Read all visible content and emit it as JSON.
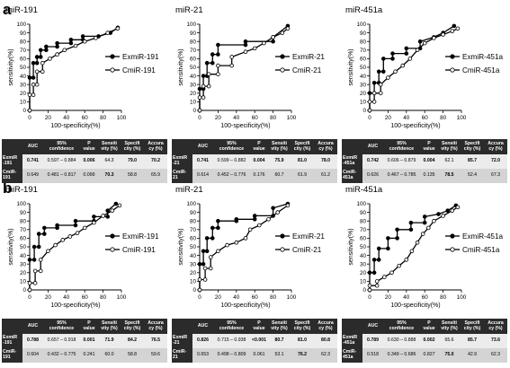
{
  "panel_labels": [
    "a",
    "b"
  ],
  "chart_data": [
    {
      "type": "line",
      "panel": "a",
      "title": "miR-191",
      "xlabel": "100-specificity(%)",
      "ylabel": "sensitivity(%)",
      "xlim": [
        0,
        100
      ],
      "ylim": [
        0,
        100
      ],
      "xticks": [
        0,
        20,
        40,
        60,
        80,
        100
      ],
      "yticks": [
        0,
        10,
        20,
        30,
        40,
        50,
        60,
        70,
        80,
        90,
        100
      ],
      "series": [
        {
          "name": "ExmiR-191",
          "marker": "filled",
          "x": [
            0,
            0,
            4,
            4,
            8,
            8,
            12,
            12,
            18,
            18,
            30,
            30,
            45,
            45,
            58,
            58,
            75,
            88,
            96
          ],
          "y": [
            0,
            38,
            38,
            55,
            55,
            62,
            62,
            70,
            70,
            74,
            74,
            78,
            78,
            82,
            82,
            86,
            86,
            90,
            96
          ]
        },
        {
          "name": "CmiR-191",
          "marker": "open",
          "x": [
            0,
            0,
            4,
            4,
            8,
            8,
            14,
            14,
            22,
            30,
            38,
            50,
            60,
            72,
            85,
            96
          ],
          "y": [
            0,
            18,
            18,
            30,
            30,
            45,
            45,
            55,
            60,
            65,
            70,
            75,
            80,
            84,
            90,
            95
          ]
        }
      ],
      "table": {
        "headers": [
          "",
          "AUC",
          "95% confidence",
          "P value",
          "Sensiti vity (%)",
          "Specifi city (%)",
          "Accura cy (%)"
        ],
        "rows": [
          [
            "ExmiR -191",
            "0.741",
            "0.597 – 0.884",
            "0.006",
            "64.3",
            "79.0",
            "70.2"
          ],
          [
            "CmiR- 191",
            "0.649",
            "0.481 – 0.817",
            "0.099",
            "70.3",
            "58.8",
            "65.9"
          ]
        ],
        "bold": [
          [
            1,
            3,
            5,
            6
          ],
          [
            4
          ]
        ]
      }
    },
    {
      "type": "line",
      "panel": "a",
      "title": "miR-21",
      "xlabel": "100-specificity(%)",
      "ylabel": "sensitivity(%)",
      "xlim": [
        0,
        100
      ],
      "ylim": [
        0,
        100
      ],
      "xticks": [
        0,
        20,
        40,
        60,
        80,
        100
      ],
      "yticks": [
        0,
        10,
        20,
        30,
        40,
        50,
        60,
        70,
        80,
        90,
        100
      ],
      "series": [
        {
          "name": "ExmiR-21",
          "marker": "filled",
          "x": [
            0,
            0,
            4,
            4,
            8,
            8,
            14,
            14,
            20,
            20,
            50,
            50,
            80,
            80,
            96
          ],
          "y": [
            0,
            25,
            25,
            40,
            40,
            55,
            55,
            65,
            65,
            76,
            76,
            80,
            80,
            85,
            98
          ]
        },
        {
          "name": "CmiR-21",
          "marker": "open",
          "x": [
            0,
            0,
            4,
            4,
            10,
            10,
            20,
            20,
            35,
            35,
            50,
            60,
            70,
            80,
            90,
            96
          ],
          "y": [
            0,
            15,
            15,
            28,
            28,
            42,
            42,
            52,
            52,
            62,
            68,
            72,
            78,
            85,
            90,
            95
          ]
        }
      ],
      "table": {
        "headers": [
          "",
          "AUC",
          "95% confidence",
          "P value",
          "Sensiti vity (%)",
          "Specifi city (%)",
          "Accura cy (%)"
        ],
        "rows": [
          [
            "ExmiR -21",
            "0.741",
            "0.599 – 0.882",
            "0.004",
            "75.9",
            "81.0",
            "78.0"
          ],
          [
            "CmiR- 21",
            "0.614",
            "0.452 – 0.776",
            "0.176",
            "60.7",
            "61.9",
            "61.2"
          ]
        ],
        "bold": [
          [
            1,
            3,
            4,
            5,
            6
          ],
          []
        ]
      }
    },
    {
      "type": "line",
      "panel": "a",
      "title": "miR-451a",
      "xlabel": "100-specificity(%)",
      "ylabel": "sensitivity(%)",
      "xlim": [
        0,
        100
      ],
      "ylim": [
        0,
        100
      ],
      "xticks": [
        0,
        20,
        40,
        60,
        80,
        100
      ],
      "yticks": [
        0,
        10,
        20,
        30,
        40,
        50,
        60,
        70,
        80,
        90,
        100
      ],
      "series": [
        {
          "name": "ExmiR-451a",
          "marker": "filled",
          "x": [
            0,
            0,
            5,
            5,
            10,
            10,
            15,
            15,
            25,
            25,
            40,
            40,
            55,
            55,
            70,
            80,
            92
          ],
          "y": [
            0,
            20,
            20,
            32,
            32,
            45,
            45,
            60,
            60,
            66,
            66,
            72,
            72,
            80,
            85,
            90,
            98
          ]
        },
        {
          "name": "CmiR-451a",
          "marker": "open",
          "x": [
            0,
            0,
            5,
            5,
            12,
            12,
            20,
            28,
            36,
            44,
            52,
            60,
            70,
            80,
            90,
            96
          ],
          "y": [
            0,
            10,
            10,
            20,
            20,
            30,
            38,
            45,
            52,
            60,
            70,
            78,
            84,
            88,
            92,
            95
          ]
        }
      ],
      "table": {
        "headers": [
          "",
          "AUC",
          "95% confidence",
          "P value",
          "Sensiti vity (%)",
          "Specifi city (%)",
          "Accura cy (%)"
        ],
        "rows": [
          [
            "ExmiR -451a",
            "0.742",
            "0.606 – 0.879",
            "0.004",
            "62.1",
            "85.7",
            "72.0"
          ],
          [
            "CmiR- 451a",
            "0.626",
            "0.467 – 0.785",
            "0.135",
            "78.5",
            "52.4",
            "67.3"
          ]
        ],
        "bold": [
          [
            1,
            3,
            5,
            6
          ],
          [
            4
          ]
        ]
      }
    },
    {
      "type": "line",
      "panel": "b",
      "title": "miR-191",
      "xlabel": "100-specificity(%)",
      "ylabel": "sensitivity(%)",
      "xlim": [
        0,
        100
      ],
      "ylim": [
        0,
        100
      ],
      "xticks": [
        0,
        20,
        40,
        60,
        80,
        100
      ],
      "yticks": [
        0,
        10,
        20,
        30,
        40,
        50,
        60,
        70,
        80,
        90,
        100
      ],
      "series": [
        {
          "name": "ExmiR-191",
          "marker": "filled",
          "x": [
            0,
            0,
            5,
            5,
            10,
            10,
            16,
            16,
            30,
            30,
            50,
            50,
            70,
            70,
            85,
            85,
            94
          ],
          "y": [
            0,
            35,
            35,
            50,
            50,
            65,
            65,
            72,
            72,
            75,
            75,
            80,
            80,
            85,
            85,
            92,
            100
          ]
        },
        {
          "name": "CmiR-191",
          "marker": "open",
          "x": [
            0,
            0,
            6,
            6,
            12,
            12,
            20,
            28,
            36,
            44,
            52,
            60,
            70,
            80,
            90,
            98
          ],
          "y": [
            0,
            8,
            8,
            22,
            22,
            35,
            45,
            52,
            58,
            62,
            66,
            72,
            78,
            86,
            92,
            98
          ]
        }
      ],
      "table": {
        "headers": [
          "",
          "AUC",
          "95% confidence",
          "P value",
          "Sensiti vity (%)",
          "Specifi city (%)",
          "Accura cy (%)"
        ],
        "rows": [
          [
            "ExmiR -191",
            "0.788",
            "0.657 – 0.918",
            "0.001",
            "71.9",
            "84.2",
            "76.5"
          ],
          [
            "CmiR- 191",
            "0.604",
            "0.432 – 0.775",
            "0.241",
            "60.0",
            "58.8",
            "59.6"
          ]
        ],
        "bold": [
          [
            1,
            3,
            4,
            5,
            6
          ],
          []
        ]
      }
    },
    {
      "type": "line",
      "panel": "b",
      "title": "miR-21",
      "xlabel": "100-specificity(%)",
      "ylabel": "sensitivity(%)",
      "xlim": [
        0,
        100
      ],
      "ylim": [
        0,
        100
      ],
      "xticks": [
        0,
        20,
        40,
        60,
        80,
        100
      ],
      "yticks": [
        0,
        10,
        20,
        30,
        40,
        50,
        60,
        70,
        80,
        90,
        100
      ],
      "series": [
        {
          "name": "ExmiR-21",
          "marker": "filled",
          "x": [
            0,
            0,
            4,
            4,
            8,
            8,
            14,
            14,
            20,
            20,
            40,
            40,
            60,
            60,
            80,
            80,
            96
          ],
          "y": [
            0,
            30,
            30,
            45,
            45,
            60,
            60,
            72,
            72,
            80,
            80,
            82,
            82,
            86,
            86,
            95,
            100
          ]
        },
        {
          "name": "CmiR-21",
          "marker": "open",
          "x": [
            0,
            0,
            6,
            6,
            12,
            12,
            20,
            30,
            40,
            50,
            55,
            65,
            75,
            85,
            96
          ],
          "y": [
            0,
            12,
            12,
            25,
            25,
            38,
            45,
            52,
            55,
            60,
            70,
            75,
            82,
            90,
            98
          ]
        }
      ],
      "table": {
        "headers": [
          "",
          "AUC",
          "95% confidence",
          "P value",
          "Sensiti vity (%)",
          "Specifi city (%)",
          "Accura cy (%)"
        ],
        "rows": [
          [
            "ExmiR -21",
            "0.826",
            "0.715 – 0.938",
            "<0.001",
            "80.7",
            "81.0",
            "80.8"
          ],
          [
            "CmiR- 21",
            "0.653",
            "0.498 – 0.809",
            "0.061",
            "53.1",
            "76.2",
            "62.3"
          ]
        ],
        "bold": [
          [
            1,
            3,
            4,
            5,
            6
          ],
          [
            5
          ]
        ]
      }
    },
    {
      "type": "line",
      "panel": "b",
      "title": "miR-451a",
      "xlabel": "100-specificity(%)",
      "ylabel": "sensitivity(%)",
      "xlim": [
        0,
        100
      ],
      "ylim": [
        0,
        100
      ],
      "xticks": [
        0,
        20,
        40,
        60,
        80,
        100
      ],
      "yticks": [
        0,
        10,
        20,
        30,
        40,
        50,
        60,
        70,
        80,
        90,
        100
      ],
      "series": [
        {
          "name": "ExmiR-451a",
          "marker": "filled",
          "x": [
            0,
            0,
            5,
            5,
            10,
            10,
            20,
            20,
            30,
            30,
            45,
            45,
            60,
            60,
            75,
            85,
            94
          ],
          "y": [
            0,
            20,
            20,
            35,
            35,
            48,
            48,
            60,
            60,
            70,
            70,
            78,
            78,
            85,
            88,
            92,
            98
          ]
        },
        {
          "name": "CmiR-451a",
          "marker": "open",
          "x": [
            0,
            0,
            8,
            8,
            16,
            24,
            32,
            40,
            46,
            52,
            58,
            64,
            70,
            80,
            90,
            96
          ],
          "y": [
            0,
            5,
            5,
            10,
            15,
            20,
            28,
            35,
            45,
            55,
            65,
            72,
            80,
            86,
            92,
            96
          ]
        }
      ],
      "table": {
        "headers": [
          "",
          "AUC",
          "95% confidence",
          "P value",
          "Sensiti vity (%)",
          "Specifi city (%)",
          "Accura cy (%)"
        ],
        "rows": [
          [
            "ExmiR -451a",
            "0.789",
            "0.630 – 0.888",
            "0.002",
            "65.6",
            "85.7",
            "73.6"
          ],
          [
            "CmiR- 451a",
            "0.518",
            "0.349 – 0.686",
            "0.827",
            "75.0",
            "42.9",
            "62.3"
          ]
        ],
        "bold": [
          [
            1,
            3,
            5,
            6
          ],
          [
            4
          ]
        ]
      }
    }
  ]
}
